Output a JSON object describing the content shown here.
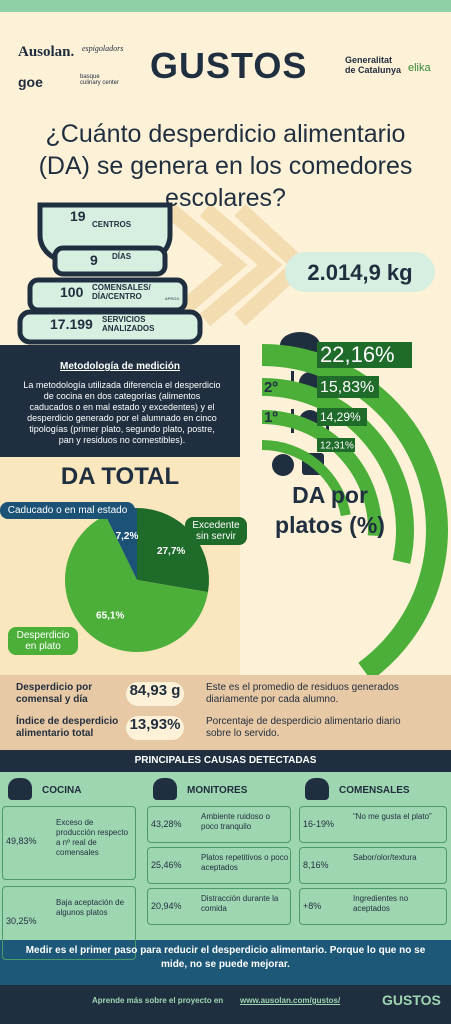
{
  "header": {
    "logos": [
      "Ausolan.",
      "espigoladors",
      "goe",
      "basque culinary center",
      "Generalitat de Catalunya",
      "elika"
    ],
    "brand": "GUSTOS"
  },
  "title": "¿Cuánto desperdicio alimentario (DA) se genera en los comedores escolares?",
  "stats": [
    {
      "value": "19",
      "label": "CENTROS"
    },
    {
      "value": "9",
      "label": "DÍAS"
    },
    {
      "value": "100",
      "label": "COMENSALES/ DÍA/CENTRO",
      "note": "APROX."
    },
    {
      "value": "17.199",
      "label": "SERVICIOS ANALIZADOS"
    }
  ],
  "total": "2.014,9 kg",
  "methodology": {
    "title": "Metodología de medición",
    "text": "La metodología utilizada diferencia el desperdicio de cocina en dos categorías (alimentos caducados o en mal estado y excedentes) y el desperdicio generado por el alumnado en cinco tipologías (primer plato, segundo plato, postre, pan y residuos no comestibles)."
  },
  "pie": {
    "type": "pie",
    "title": "DA TOTAL",
    "categories": [
      "Excedente sin servir",
      "Desperdicio en plato",
      "Caducado o en mal estado"
    ],
    "values": [
      27.7,
      65.1,
      7.2
    ],
    "value_labels": [
      "27,7%",
      "65,1%",
      "7,2%"
    ],
    "colors": [
      "#1f6b2a",
      "#4caf3a",
      "#1c5276"
    ]
  },
  "platos": {
    "type": "radial-bar",
    "title": "DA por platos (%)",
    "categories": [
      null,
      "2º",
      "1º",
      null
    ],
    "values": [
      22.16,
      15.83,
      14.29,
      12.31
    ],
    "value_labels": [
      "22,16%",
      "15,83%",
      "14,29%",
      "12,31%"
    ],
    "colors": [
      "#4caf3a",
      "#4caf3a",
      "#4caf3a",
      "#4caf3a"
    ]
  },
  "metrics": [
    {
      "label": "Desperdicio por comensal y día",
      "value": "84,93 g",
      "text": "Este es el promedio de residuos generados diariamente por cada alumno."
    },
    {
      "label": "Índice de desperdicio alimentario total",
      "value": "13,93%",
      "text": "Porcentaje de desperdicio alimentario diario sobre lo servido."
    }
  ],
  "causes": {
    "title": "PRINCIPALES CAUSAS DETECTADAS",
    "columns": [
      {
        "header": "COCINA",
        "items": [
          [
            "49,83%",
            "Exceso de producción respecto a nº real de comensales"
          ],
          [
            "30,25%",
            "Baja aceptación de algunos platos"
          ]
        ]
      },
      {
        "header": "MONITORES",
        "items": [
          [
            "43,28%",
            "Ambiente ruidoso o poco tranquilo"
          ],
          [
            "25,46%",
            "Platos repetitivos o poco aceptados"
          ],
          [
            "20,94%",
            "Distracción durante la comida"
          ]
        ]
      },
      {
        "header": "COMENSALES",
        "items": [
          [
            "16-19%",
            "“No me gusta el plato”"
          ],
          [
            "8,16%",
            "Sabor/olor/textura"
          ],
          [
            "+8%",
            "Ingredientes no aceptados"
          ]
        ]
      }
    ]
  },
  "footer": {
    "message": "Medir es el primer paso para reducir el desperdicio alimentario. Porque lo que no se mide, no se puede mejorar.",
    "cta": "Aprende más sobre el proyecto en",
    "link": "www.ausolan.com/gustos/",
    "brand": "GUSTOS"
  }
}
